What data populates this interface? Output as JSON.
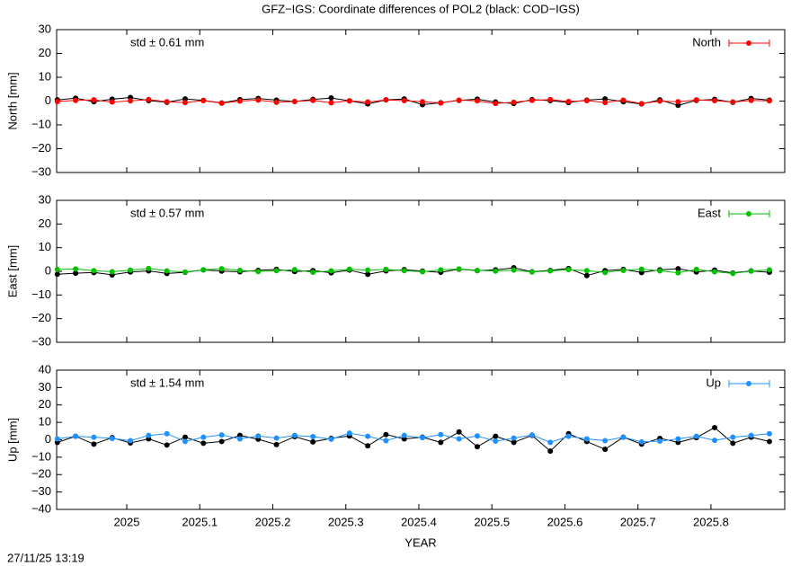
{
  "title": "GFZ−IGS: Coordinate differences of POL2 (black: COD−IGS)",
  "timestamp": "27/11/25 13:19",
  "chart_data": [
    {
      "type": "line",
      "ylabel": "North [mm]",
      "annotation": "std ± 0.61 mm",
      "annotation_color": "#ff0000",
      "legend": "top-right",
      "x": [
        2024.905,
        2024.93,
        2024.955,
        2024.98,
        2025.005,
        2025.03,
        2025.055,
        2025.08,
        2025.105,
        2025.13,
        2025.155,
        2025.18,
        2025.205,
        2025.23,
        2025.255,
        2025.28,
        2025.305,
        2025.33,
        2025.355,
        2025.38,
        2025.405,
        2025.43,
        2025.455,
        2025.48,
        2025.505,
        2025.53,
        2025.555,
        2025.58,
        2025.605,
        2025.63,
        2025.655,
        2025.68,
        2025.705,
        2025.73,
        2025.755,
        2025.78,
        2025.805,
        2025.83,
        2025.855,
        2025.88
      ],
      "xlim": [
        2024.904,
        2025.901
      ],
      "xticks": [
        2025,
        2025.1,
        2025.2,
        2025.3,
        2025.4,
        2025.5,
        2025.6,
        2025.7,
        2025.8
      ],
      "ylim": [
        -30,
        30
      ],
      "yticks": [
        {
          "value": -30,
          "label": "−30"
        },
        {
          "value": -20,
          "label": "−20"
        },
        {
          "value": -10,
          "label": "−10"
        },
        0,
        10,
        20,
        30
      ],
      "series": [
        {
          "color": "#000000",
          "values": [
            0.5,
            1.2,
            -0.3,
            0.8,
            1.5,
            0.2,
            -0.5,
            0.9,
            0.3,
            -0.8,
            0.6,
            1.1,
            0.4,
            -0.2,
            0.7,
            1.3,
            0.1,
            -1.2,
            0.5,
            0.9,
            -1.5,
            -0.7,
            0.3,
            0.8,
            -0.4,
            -1.0,
            0.6,
            0.2,
            -0.6,
            0.4,
            0.9,
            -0.3,
            -1.2,
            0.5,
            -1.8,
            0.3,
            0.7,
            -0.5,
            1.1,
            0.4
          ]
        },
        {
          "name": "North",
          "color": "#ff0000",
          "values": [
            -0.2,
            0.3,
            0.5,
            -0.4,
            0.1,
            0.6,
            -0.3,
            -0.6,
            0.2,
            -0.9,
            0.0,
            0.4,
            -0.5,
            -0.2,
            0.3,
            -0.7,
            0.1,
            -0.4,
            0.5,
            0.2,
            -0.3,
            -0.8,
            0.4,
            0.1,
            -1.0,
            -0.5,
            0.3,
            0.6,
            -0.2,
            0.2,
            -0.6,
            0.4,
            -1.1,
            0.0,
            -0.3,
            0.5,
            0.2,
            -0.4,
            0.3,
            0.1
          ]
        }
      ]
    },
    {
      "type": "line",
      "ylabel": "East [mm]",
      "annotation": "std ± 0.57 mm",
      "annotation_color": "#00c000",
      "legend": "top-right",
      "x": [
        2024.905,
        2024.93,
        2024.955,
        2024.98,
        2025.005,
        2025.03,
        2025.055,
        2025.08,
        2025.105,
        2025.13,
        2025.155,
        2025.18,
        2025.205,
        2025.23,
        2025.255,
        2025.28,
        2025.305,
        2025.33,
        2025.355,
        2025.38,
        2025.405,
        2025.43,
        2025.455,
        2025.48,
        2025.505,
        2025.53,
        2025.555,
        2025.58,
        2025.605,
        2025.63,
        2025.655,
        2025.68,
        2025.705,
        2025.73,
        2025.755,
        2025.78,
        2025.805,
        2025.83,
        2025.855,
        2025.88
      ],
      "xlim": [
        2024.904,
        2025.901
      ],
      "xticks": [
        2025,
        2025.1,
        2025.2,
        2025.3,
        2025.4,
        2025.5,
        2025.6,
        2025.7,
        2025.8
      ],
      "ylim": [
        -30,
        30
      ],
      "yticks": [
        {
          "value": -30,
          "label": "−30"
        },
        {
          "value": -20,
          "label": "−20"
        },
        {
          "value": -10,
          "label": "−10"
        },
        0,
        10,
        20,
        30
      ],
      "series": [
        {
          "color": "#000000",
          "values": [
            -1.2,
            -0.8,
            -0.5,
            -1.5,
            -0.3,
            0.2,
            -0.9,
            -0.4,
            0.6,
            0.1,
            -0.2,
            0.4,
            0.8,
            -0.1,
            0.3,
            -0.6,
            0.5,
            -1.3,
            0.2,
            0.7,
            0.1,
            -0.4,
            0.9,
            0.3,
            0.6,
            1.5,
            -0.2,
            0.4,
            1.2,
            -1.8,
            0.3,
            0.8,
            -0.5,
            0.6,
            1.1,
            -0.3,
            0.5,
            -0.7,
            0.2,
            -0.4
          ]
        },
        {
          "name": "East",
          "color": "#00c000",
          "values": [
            0.8,
            1.0,
            0.3,
            -0.2,
            0.5,
            1.2,
            0.2,
            -0.3,
            0.6,
            1.1,
            0.4,
            -0.1,
            0.3,
            0.7,
            -0.4,
            0.2,
            0.9,
            0.5,
            0.8,
            0.3,
            -0.2,
            0.6,
            1.0,
            0.4,
            0.1,
            0.5,
            -0.3,
            0.2,
            0.7,
            0.3,
            -0.5,
            0.4,
            0.9,
            0.2,
            -0.6,
            0.8,
            -0.2,
            -0.9,
            0.1,
            0.6
          ]
        }
      ]
    },
    {
      "type": "line",
      "ylabel": "Up [mm]",
      "xlabel": "YEAR",
      "annotation": "std ± 1.54 mm",
      "annotation_color": "#1e90ff",
      "legend": "top-right",
      "x": [
        2024.905,
        2024.93,
        2024.955,
        2024.98,
        2025.005,
        2025.03,
        2025.055,
        2025.08,
        2025.105,
        2025.13,
        2025.155,
        2025.18,
        2025.205,
        2025.23,
        2025.255,
        2025.28,
        2025.305,
        2025.33,
        2025.355,
        2025.38,
        2025.405,
        2025.43,
        2025.455,
        2025.48,
        2025.505,
        2025.53,
        2025.555,
        2025.58,
        2025.605,
        2025.63,
        2025.655,
        2025.68,
        2025.705,
        2025.73,
        2025.755,
        2025.78,
        2025.805,
        2025.83,
        2025.855,
        2025.88
      ],
      "xlim": [
        2024.904,
        2025.901
      ],
      "xticks": [
        2025,
        2025.1,
        2025.2,
        2025.3,
        2025.4,
        2025.5,
        2025.6,
        2025.7,
        2025.8
      ],
      "ylim": [
        -40,
        40
      ],
      "yticks": [
        {
          "value": -40,
          "label": "−40"
        },
        {
          "value": -30,
          "label": "−30"
        },
        {
          "value": -20,
          "label": "−20"
        },
        {
          "value": -10,
          "label": "−10"
        },
        0,
        10,
        20,
        30,
        40
      ],
      "series": [
        {
          "color": "#000000",
          "values": [
            -1.5,
            2.0,
            -2.5,
            1.2,
            -1.8,
            0.5,
            -3.0,
            1.5,
            -2.0,
            -1.0,
            2.5,
            0.3,
            -2.8,
            1.8,
            -1.2,
            0.8,
            2.2,
            -3.5,
            3.0,
            0.5,
            1.5,
            -1.5,
            4.5,
            -4.0,
            2.0,
            -1.5,
            2.5,
            -6.5,
            3.5,
            -1.0,
            -5.5,
            1.5,
            -2.5,
            0.8,
            -1.5,
            1.2,
            7.0,
            -2.0,
            1.5,
            -1.0
          ]
        },
        {
          "name": "Up",
          "color": "#1e90ff",
          "values": [
            0.5,
            2.0,
            1.5,
            0.8,
            -0.5,
            2.5,
            3.5,
            -1.0,
            1.5,
            2.8,
            0.5,
            2.2,
            1.0,
            2.5,
            1.8,
            0.3,
            3.8,
            2.0,
            -0.5,
            2.5,
            1.2,
            3.0,
            0.5,
            2.2,
            -0.8,
            1.0,
            2.8,
            -1.5,
            2.0,
            0.5,
            -0.5,
            1.5,
            -1.2,
            -0.8,
            0.5,
            2.0,
            -0.3,
            1.5,
            2.5,
            3.5
          ]
        }
      ]
    }
  ]
}
